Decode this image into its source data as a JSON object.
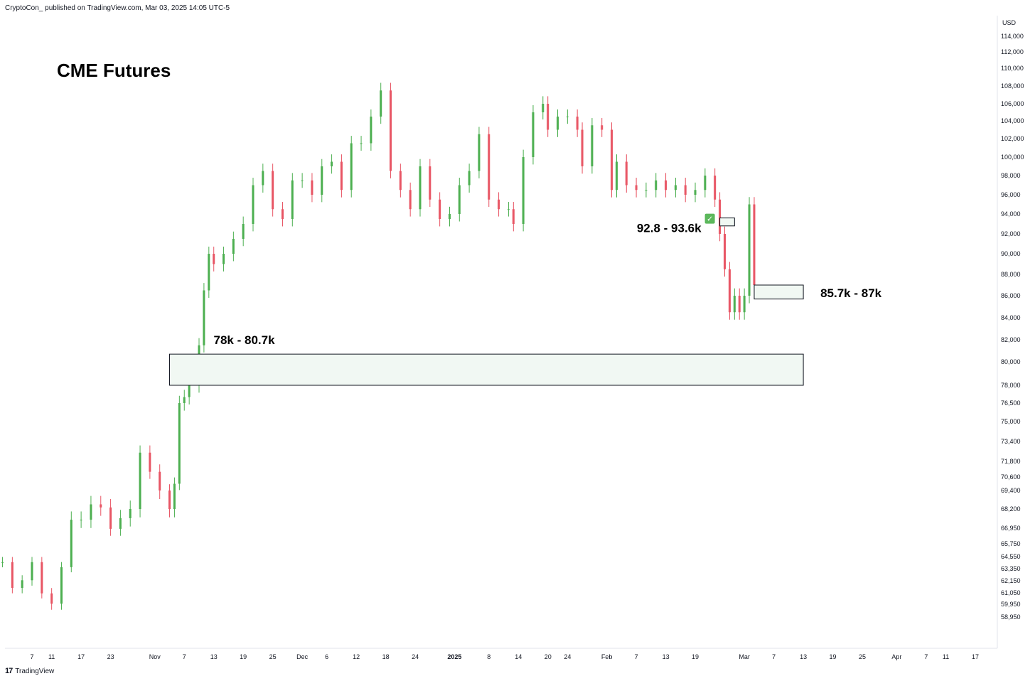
{
  "header": {
    "publish_line": "CryptoCon_ published on TradingView.com, Mar 03, 2025 14:05 UTC-5"
  },
  "footer": {
    "logo_glyph": "17",
    "brand": "TradingView"
  },
  "chart_data": {
    "type": "candlestick",
    "title": "CME Futures",
    "currency": "USD",
    "y_ticks": [
      114000,
      112000,
      110000,
      108000,
      106000,
      104000,
      102000,
      100000,
      98000,
      96000,
      94000,
      92000,
      90000,
      88000,
      86000,
      84000,
      82000,
      80000,
      78000,
      76500,
      75000,
      73400,
      71800,
      70600,
      69400,
      68200,
      66950,
      65750,
      64550,
      63350,
      62150,
      61050,
      59950,
      58950
    ],
    "y_tick_labels": [
      "114,000",
      "112,000",
      "110,000",
      "108,000",
      "106,000",
      "104,000",
      "102,000",
      "100,000",
      "98,000",
      "96,000",
      "94,000",
      "92,000",
      "90,000",
      "88,000",
      "86,000",
      "84,000",
      "82,000",
      "80,000",
      "78,000",
      "76,500",
      "75,000",
      "73,400",
      "71,800",
      "70,600",
      "69,400",
      "68,200",
      "66,950",
      "65,750",
      "64,550",
      "63,350",
      "62,150",
      "61,050",
      "59,950",
      "58,950"
    ],
    "x_ticks": [
      {
        "date": "2024-10-07",
        "label": "7"
      },
      {
        "date": "2024-10-11",
        "label": "11"
      },
      {
        "date": "2024-10-17",
        "label": "17"
      },
      {
        "date": "2024-10-23",
        "label": "23"
      },
      {
        "date": "2024-11-01",
        "label": "Nov"
      },
      {
        "date": "2024-11-07",
        "label": "7"
      },
      {
        "date": "2024-11-13",
        "label": "13"
      },
      {
        "date": "2024-11-19",
        "label": "19"
      },
      {
        "date": "2024-11-25",
        "label": "25"
      },
      {
        "date": "2024-12-01",
        "label": "Dec"
      },
      {
        "date": "2024-12-06",
        "label": "6"
      },
      {
        "date": "2024-12-12",
        "label": "12"
      },
      {
        "date": "2024-12-18",
        "label": "18"
      },
      {
        "date": "2024-12-24",
        "label": "24"
      },
      {
        "date": "2025-01-01",
        "label": "2025",
        "bold": true
      },
      {
        "date": "2025-01-08",
        "label": "8"
      },
      {
        "date": "2025-01-14",
        "label": "14"
      },
      {
        "date": "2025-01-20",
        "label": "20"
      },
      {
        "date": "2025-01-24",
        "label": "24"
      },
      {
        "date": "2025-02-01",
        "label": "Feb"
      },
      {
        "date": "2025-02-07",
        "label": "7"
      },
      {
        "date": "2025-02-13",
        "label": "13"
      },
      {
        "date": "2025-02-19",
        "label": "19"
      },
      {
        "date": "2025-03-01",
        "label": "Mar"
      },
      {
        "date": "2025-03-07",
        "label": "7"
      },
      {
        "date": "2025-03-13",
        "label": "13"
      },
      {
        "date": "2025-03-19",
        "label": "19"
      },
      {
        "date": "2025-03-25",
        "label": "25"
      },
      {
        "date": "2025-04-01",
        "label": "Apr"
      },
      {
        "date": "2025-04-07",
        "label": "7"
      },
      {
        "date": "2025-04-11",
        "label": "11"
      },
      {
        "date": "2025-04-17",
        "label": "17"
      }
    ],
    "series": [
      {
        "type": "candlestick-close",
        "points": [
          [
            "2024-10-01",
            64000
          ],
          [
            "2024-10-03",
            61500
          ],
          [
            "2024-10-05",
            62200
          ],
          [
            "2024-10-07",
            64000
          ],
          [
            "2024-10-09",
            61000
          ],
          [
            "2024-10-11",
            60000
          ],
          [
            "2024-10-13",
            63500
          ],
          [
            "2024-10-15",
            67500
          ],
          [
            "2024-10-17",
            67500
          ],
          [
            "2024-10-19",
            68500
          ],
          [
            "2024-10-21",
            68300
          ],
          [
            "2024-10-23",
            66900
          ],
          [
            "2024-10-25",
            67600
          ],
          [
            "2024-10-27",
            68200
          ],
          [
            "2024-10-29",
            72500
          ],
          [
            "2024-10-31",
            71000
          ],
          [
            "2024-11-02",
            69400
          ],
          [
            "2024-11-04",
            68200
          ],
          [
            "2024-11-05",
            70000
          ],
          [
            "2024-11-06",
            76500
          ],
          [
            "2024-11-07",
            77000
          ],
          [
            "2024-11-08",
            78000
          ],
          [
            "2024-11-10",
            81500
          ],
          [
            "2024-11-11",
            86500
          ],
          [
            "2024-11-12",
            90000
          ],
          [
            "2024-11-13",
            89000
          ],
          [
            "2024-11-15",
            90000
          ],
          [
            "2024-11-17",
            91500
          ],
          [
            "2024-11-19",
            93000
          ],
          [
            "2024-11-21",
            97000
          ],
          [
            "2024-11-23",
            98500
          ],
          [
            "2024-11-25",
            94500
          ],
          [
            "2024-11-27",
            93500
          ],
          [
            "2024-11-29",
            97500
          ],
          [
            "2024-12-01",
            97500
          ],
          [
            "2024-12-03",
            96000
          ],
          [
            "2024-12-05",
            99000
          ],
          [
            "2024-12-07",
            99500
          ],
          [
            "2024-12-09",
            96500
          ],
          [
            "2024-12-11",
            101500
          ],
          [
            "2024-12-13",
            101500
          ],
          [
            "2024-12-15",
            104500
          ],
          [
            "2024-12-17",
            107500
          ],
          [
            "2024-12-19",
            98500
          ],
          [
            "2024-12-21",
            96500
          ],
          [
            "2024-12-23",
            94500
          ],
          [
            "2024-12-25",
            99000
          ],
          [
            "2024-12-27",
            95500
          ],
          [
            "2024-12-29",
            93500
          ],
          [
            "2024-12-31",
            94000
          ],
          [
            "2025-01-02",
            97000
          ],
          [
            "2025-01-04",
            98500
          ],
          [
            "2025-01-06",
            102500
          ],
          [
            "2025-01-08",
            95500
          ],
          [
            "2025-01-10",
            94500
          ],
          [
            "2025-01-12",
            94500
          ],
          [
            "2025-01-13",
            93000
          ],
          [
            "2025-01-15",
            100000
          ],
          [
            "2025-01-17",
            105000
          ],
          [
            "2025-01-19",
            106000
          ],
          [
            "2025-01-20",
            103000
          ],
          [
            "2025-01-22",
            104500
          ],
          [
            "2025-01-24",
            104500
          ],
          [
            "2025-01-26",
            103000
          ],
          [
            "2025-01-27",
            99000
          ],
          [
            "2025-01-29",
            103500
          ],
          [
            "2025-01-31",
            103000
          ],
          [
            "2025-02-02",
            96500
          ],
          [
            "2025-02-03",
            99500
          ],
          [
            "2025-02-05",
            97000
          ],
          [
            "2025-02-07",
            96500
          ],
          [
            "2025-02-09",
            96500
          ],
          [
            "2025-02-11",
            97500
          ],
          [
            "2025-02-13",
            96500
          ],
          [
            "2025-02-15",
            97000
          ],
          [
            "2025-02-17",
            96000
          ],
          [
            "2025-02-19",
            96500
          ],
          [
            "2025-02-21",
            98000
          ],
          [
            "2025-02-23",
            95500
          ],
          [
            "2025-02-24",
            92000
          ],
          [
            "2025-02-25",
            88500
          ],
          [
            "2025-02-26",
            84500
          ],
          [
            "2025-02-27",
            86000
          ],
          [
            "2025-02-28",
            84500
          ],
          [
            "2025-03-01",
            86000
          ],
          [
            "2025-03-02",
            95000
          ],
          [
            "2025-03-03",
            87000
          ]
        ]
      }
    ],
    "zones": [
      {
        "id": "zone-high",
        "low": 92800,
        "high": 93600,
        "label": "92.8 - 93.6k",
        "status": "✅",
        "x_start": "2025-02-24",
        "x_end": "2025-02-27"
      },
      {
        "id": "zone-mid",
        "low": 85700,
        "high": 87000,
        "label": "85.7k - 87k",
        "x_start": "2025-03-03",
        "x_end": "2025-03-13"
      },
      {
        "id": "zone-low",
        "low": 78000,
        "high": 80700,
        "label": "78k - 80.7k",
        "x_start": "2024-11-04",
        "x_end": "2025-03-13"
      }
    ],
    "colors": {
      "up": "#4caf50",
      "down": "#e85564",
      "zone_fill": "#f1f8f3",
      "zone_border": "#131722",
      "check_bg": "#5cb85c",
      "axis_text": "#131722"
    }
  }
}
